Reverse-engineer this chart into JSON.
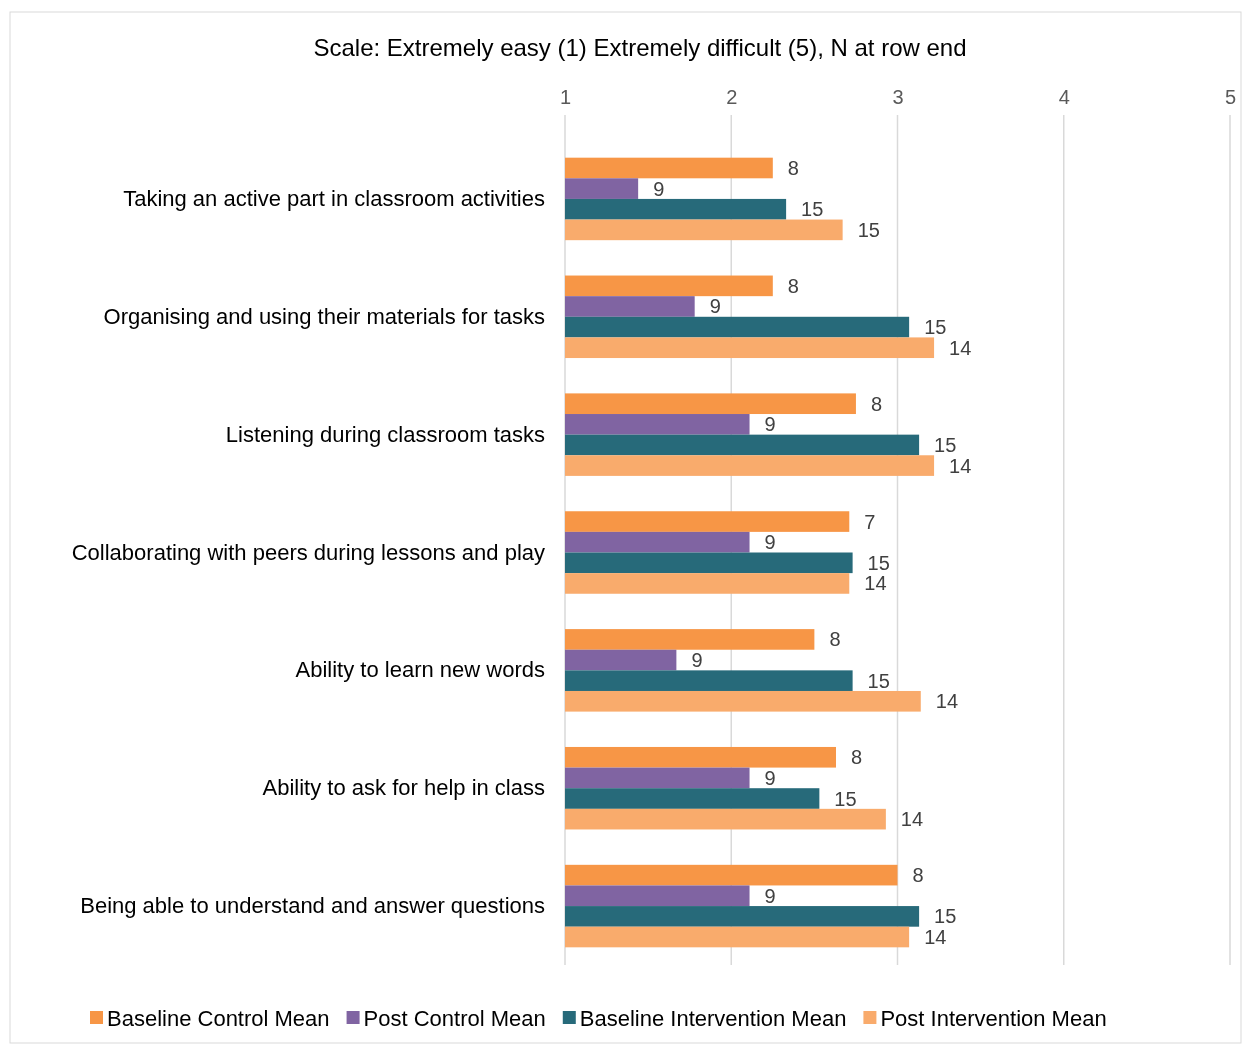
{
  "chart_data": {
    "type": "bar",
    "orientation": "horizontal",
    "title": "Scale: Extremely easy (1) Extremely difficult (5), N at row end",
    "categories": [
      "Taking an active part in classroom activities",
      "Organising and using their materials for tasks",
      "Listening during classroom tasks",
      "Collaborating with peers during lessons and play",
      "Ability to learn new words",
      "Ability to ask for help in class",
      "Being able to understand and answer questions"
    ],
    "series": [
      {
        "name": "Baseline Control Mean",
        "color": "#f79646",
        "values": [
          2.25,
          2.25,
          2.75,
          2.71,
          2.5,
          2.63,
          3.0
        ]
      },
      {
        "name": "Post Control Mean",
        "color": "#8064a2",
        "values": [
          1.44,
          1.78,
          2.11,
          2.11,
          1.67,
          2.11,
          2.11
        ]
      },
      {
        "name": "Baseline Intervention Mean",
        "color": "#276a7a",
        "values": [
          2.33,
          3.07,
          3.13,
          2.73,
          2.73,
          2.53,
          3.13
        ]
      },
      {
        "name": "Post Intervention Mean",
        "color": "#f9ab6c",
        "values": [
          2.67,
          3.22,
          3.22,
          2.71,
          3.14,
          2.93,
          3.07
        ]
      }
    ],
    "annotations": [
      "8",
      "9",
      "15",
      "15",
      "8",
      "9",
      "15",
      "14",
      "8",
      "9",
      "15",
      "14",
      "7",
      "9",
      "15",
      "14",
      "8",
      "9",
      "15",
      "14",
      "8",
      "9",
      "15",
      "14",
      "8",
      "9",
      "15",
      "14"
    ],
    "xlim": [
      1,
      5
    ],
    "xticks": [
      1,
      2,
      3,
      4,
      5
    ],
    "grid": "x",
    "legend": "bottom"
  }
}
